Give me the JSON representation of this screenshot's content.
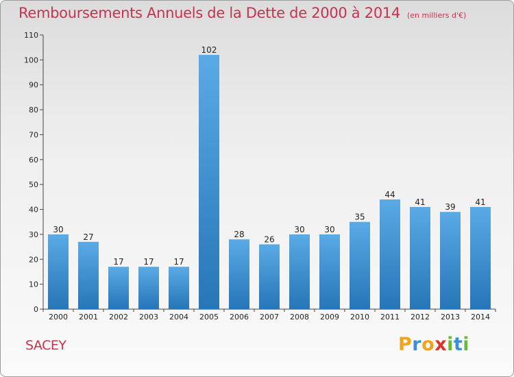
{
  "header": {
    "title": "Remboursements Annuels de la Dette de 2000 à 2014",
    "unit_note": "(en milliers d'€)"
  },
  "footer": {
    "city": "SACEY",
    "logo_letters": [
      {
        "ch": "P",
        "color": "#f2a31c"
      },
      {
        "ch": "r",
        "color": "#3a8fd8"
      },
      {
        "ch": "o",
        "color": "#f2a31c"
      },
      {
        "ch": "x",
        "color": "#d9342b"
      },
      {
        "ch": "i",
        "color": "#6ab93a"
      },
      {
        "ch": "t",
        "color": "#3a8fd8"
      },
      {
        "ch": "i",
        "color": "#6ab93a"
      }
    ]
  },
  "chart_data": {
    "type": "bar",
    "title": "Remboursements Annuels de la Dette de 2000 à 2014",
    "categories": [
      "2000",
      "2001",
      "2002",
      "2003",
      "2004",
      "2005",
      "2006",
      "2007",
      "2008",
      "2009",
      "2010",
      "2011",
      "2012",
      "2013",
      "2014"
    ],
    "values": [
      30,
      27,
      17,
      17,
      17,
      102,
      28,
      26,
      30,
      30,
      35,
      44,
      41,
      39,
      41
    ],
    "ylim": [
      0,
      110
    ],
    "yticks": [
      0,
      10,
      20,
      30,
      40,
      50,
      60,
      70,
      80,
      90,
      100,
      110
    ],
    "grid": false,
    "bar_color_light": "#5aaae6",
    "bar_color_dark": "#2676b8",
    "axis_color": "#444444",
    "label_color": "#222222"
  }
}
